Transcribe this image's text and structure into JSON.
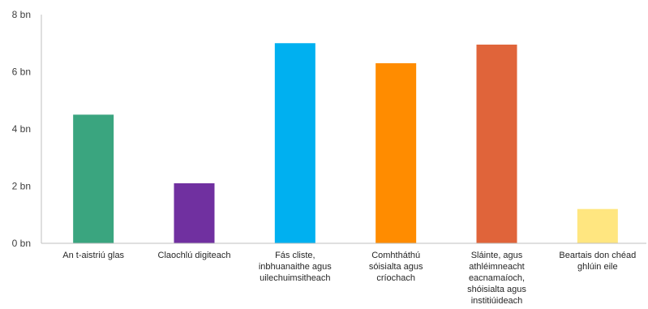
{
  "chart_data": {
    "type": "bar",
    "categories": [
      [
        "An t-aistriú glas"
      ],
      [
        "Claochlú digiteach"
      ],
      [
        "Fás cliste,",
        "inbhuanaithe agus",
        "uilechuimsitheach"
      ],
      [
        "Comhtháthú",
        "sóisialta agus",
        "críochach"
      ],
      [
        "Sláinte, agus",
        "athléimneacht",
        "eacnamaíoch,",
        "shóisialta agus",
        "institiúideach"
      ],
      [
        "Beartais don chéad",
        "ghlúin eile"
      ]
    ],
    "values": [
      4.5,
      2.1,
      7.0,
      6.3,
      6.95,
      1.2
    ],
    "colors": [
      "#3aa57f",
      "#7030a0",
      "#00b0f0",
      "#ff8c00",
      "#e0643a",
      "#ffe680"
    ],
    "y_ticks": [
      0,
      2,
      4,
      6,
      8
    ],
    "y_tick_labels": [
      "0 bn",
      "2 bn",
      "4 bn",
      "6 bn",
      "8 bn"
    ],
    "ylim": [
      0,
      8
    ],
    "title": "",
    "xlabel": "",
    "ylabel": "",
    "grid": false,
    "legend": "none"
  }
}
